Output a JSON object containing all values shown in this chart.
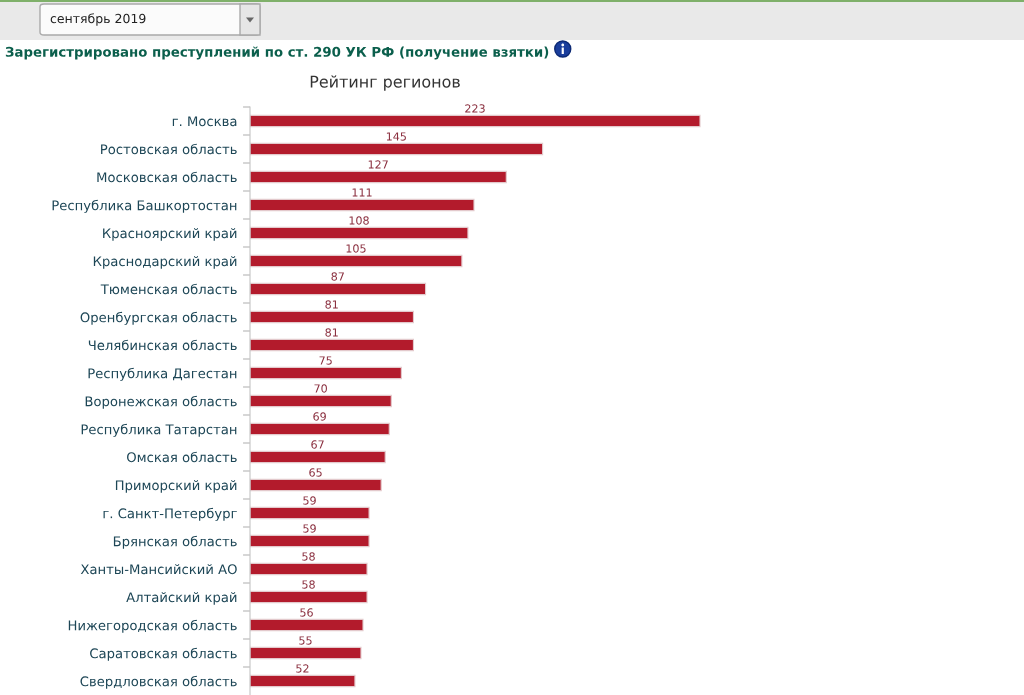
{
  "chart_data": {
    "type": "bar",
    "orientation": "horizontal",
    "title": "Зарегистрировано преступлений по ст. 290 УК РФ (получение взятки)",
    "subtitle": "Рейтинг регионов",
    "annotations": [
      "сентябрь 2019"
    ],
    "categories": [
      "г. Москва",
      "Ростовская область",
      "Московская область",
      "Республика Башкортостан",
      "Красноярский край",
      "Краснодарский край",
      "Тюменская область",
      "Оренбургская область",
      "Челябинская область",
      "Республика Дагестан",
      "Воронежская область",
      "Республика Татарстан",
      "Омская область",
      "Приморский край",
      "г. Санкт-Петербург",
      "Брянская область",
      "Ханты-Мансийский АО",
      "Алтайский край",
      "Нижегородская область",
      "Саратовская область",
      "Свердловская область"
    ],
    "values": [
      223,
      145,
      127,
      111,
      108,
      105,
      87,
      81,
      81,
      75,
      70,
      69,
      67,
      65,
      59,
      59,
      58,
      58,
      56,
      55,
      52
    ],
    "color": "#b31b2c",
    "data_labels": true
  }
}
